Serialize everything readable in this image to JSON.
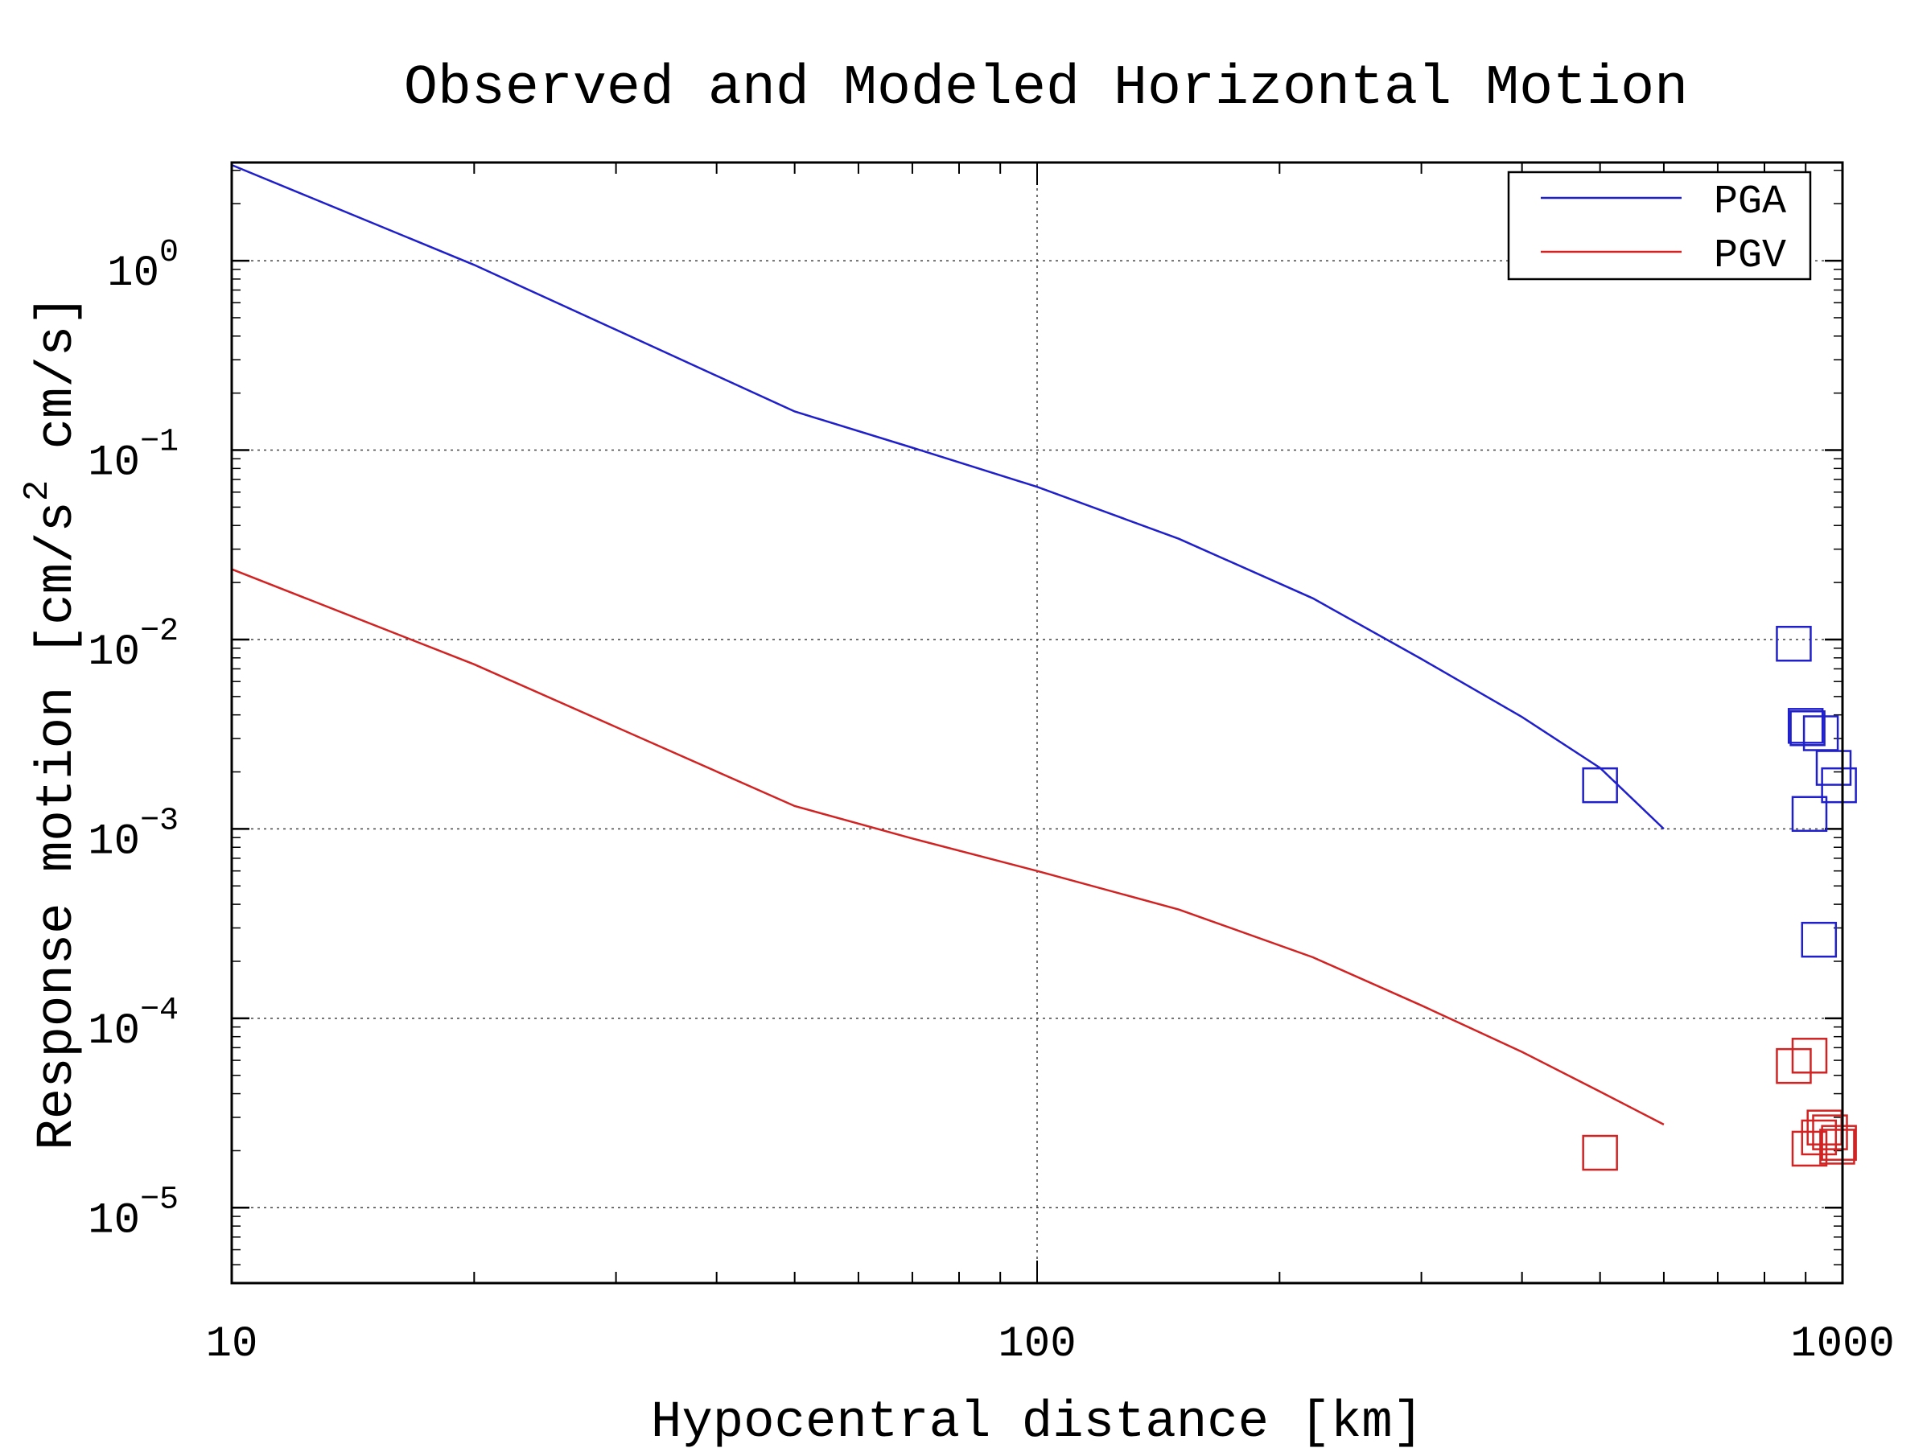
{
  "chart_data": {
    "type": "line",
    "title": "Observed and Modeled Horizontal Motion",
    "xlabel": "Hypocentral distance [km]",
    "ylabel": {
      "prefix": "Response motion  [cm/s",
      "sup": "2",
      "suffix": "  cm/s]"
    },
    "x_scale": "log",
    "y_scale": "log",
    "xlim": [
      10,
      1000
    ],
    "ylim": [
      4e-06,
      3.3
    ],
    "x_ticks": [
      {
        "value": 10,
        "label": "10"
      },
      {
        "value": 100,
        "label": "100"
      },
      {
        "value": 1000,
        "label": "1000"
      }
    ],
    "y_ticks": [
      {
        "value": 1,
        "base": "10",
        "exp": "0"
      },
      {
        "value": 0.1,
        "base": "10",
        "exp": "−1"
      },
      {
        "value": 0.01,
        "base": "10",
        "exp": "−2"
      },
      {
        "value": 0.001,
        "base": "10",
        "exp": "−3"
      },
      {
        "value": 0.0001,
        "base": "10",
        "exp": "−4"
      },
      {
        "value": 1e-05,
        "base": "10",
        "exp": "−5"
      }
    ],
    "grid": true,
    "legend_position": "top-right",
    "series": [
      {
        "name": "PGA",
        "color": "#1f1fcc",
        "line": {
          "x": [
            10,
            20,
            50,
            70,
            100,
            150,
            220,
            300,
            400,
            500,
            600
          ],
          "y": [
            3.2,
            0.95,
            0.16,
            0.103,
            0.064,
            0.034,
            0.0165,
            0.0079,
            0.0039,
            0.0021,
            0.001
          ]
        },
        "observed": {
          "x": [
            500,
            870,
            900,
            905,
            940,
            910,
            975,
            990,
            935
          ],
          "y": [
            0.0017,
            0.0095,
            0.0035,
            0.0034,
            0.0032,
            0.0012,
            0.0021,
            0.0017,
            0.00026
          ]
        }
      },
      {
        "name": "PGV",
        "color": "#d22222",
        "line": {
          "x": [
            10,
            20,
            50,
            70,
            100,
            150,
            220,
            300,
            400,
            500,
            600
          ],
          "y": [
            0.0235,
            0.0074,
            0.00132,
            0.00089,
            0.0006,
            0.000375,
            0.00021,
            0.000117,
            6.65e-05,
            4.1e-05,
            2.75e-05
          ]
        },
        "observed": {
          "x": [
            500,
            870,
            910,
            910,
            935,
            950,
            965,
            990,
            985
          ],
          "y": [
            1.95e-05,
            5.6e-05,
            6.35e-05,
            2.05e-05,
            2.35e-05,
            2.65e-05,
            2.5e-05,
            2.2e-05,
            2.1e-05
          ]
        }
      }
    ]
  }
}
